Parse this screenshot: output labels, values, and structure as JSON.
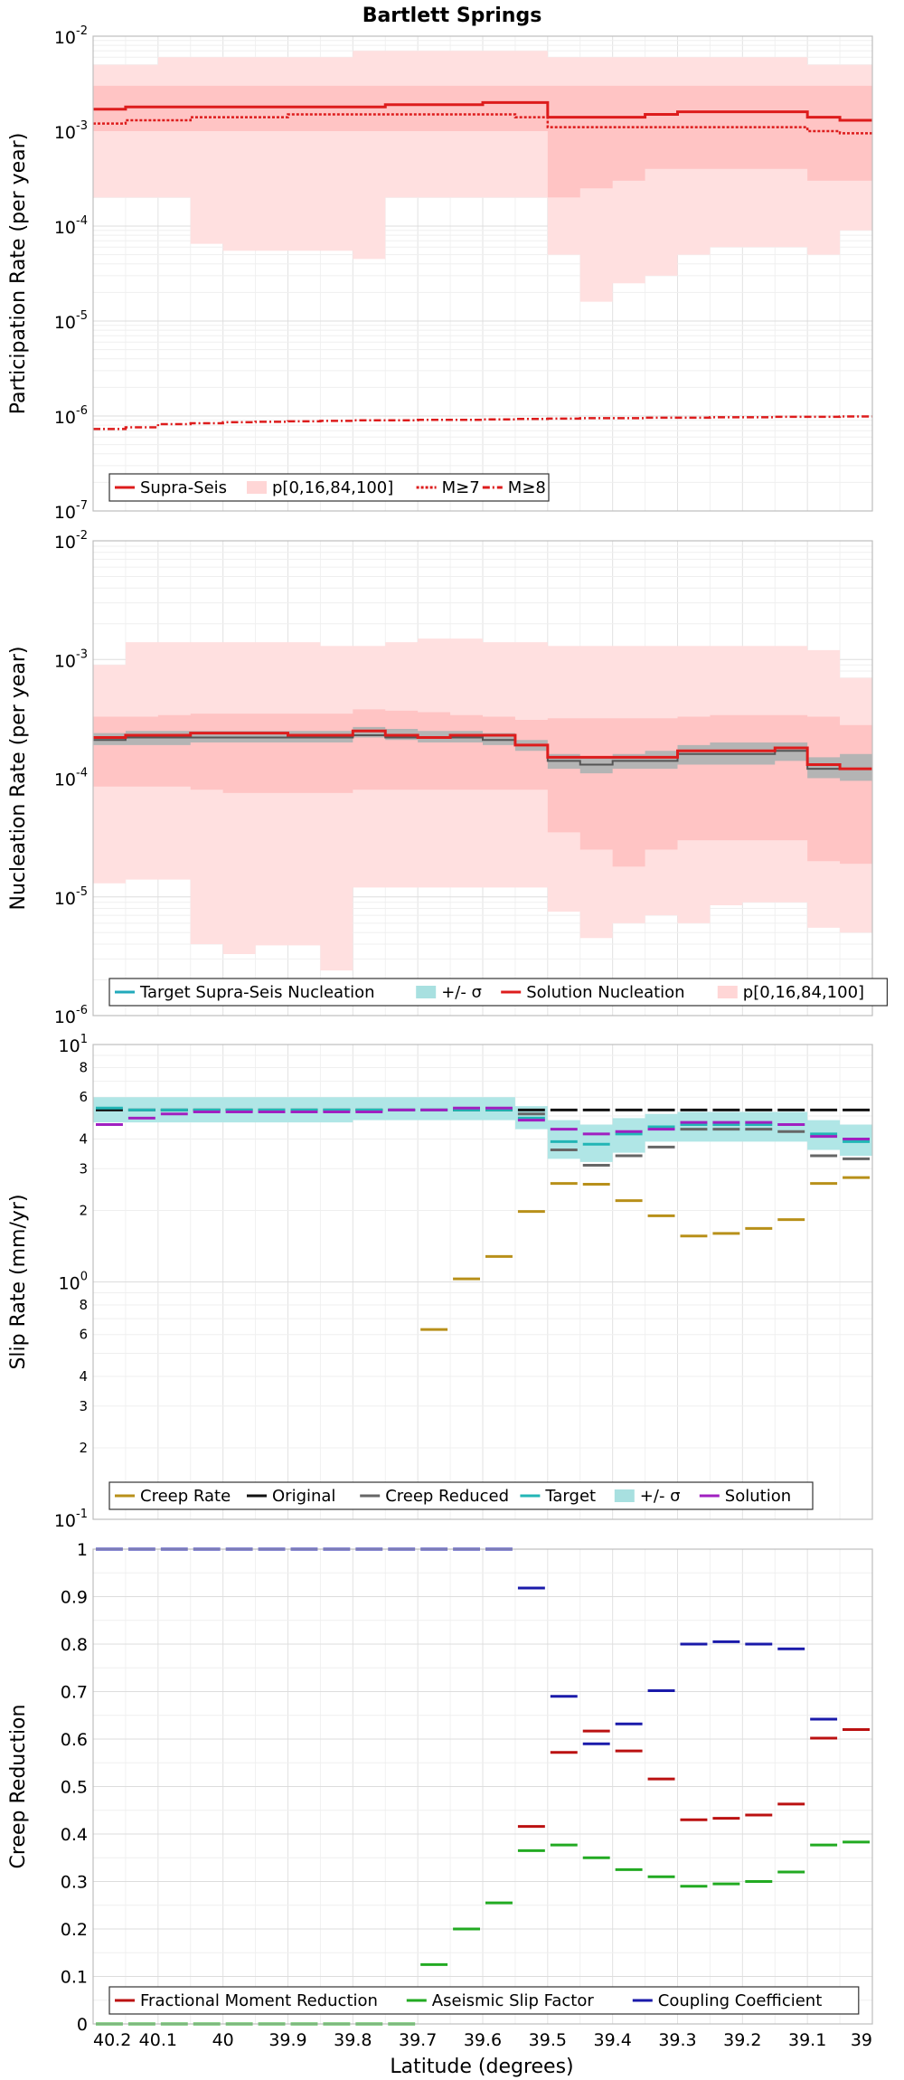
{
  "figure": {
    "title": "Bartlett Springs",
    "xlabel": "Latitude (degrees)",
    "xticks": [
      "40.2",
      "40.1",
      "40",
      "39.9",
      "39.8",
      "39.7",
      "39.6",
      "39.5",
      "39.4",
      "39.3",
      "39.2",
      "39.1",
      "39"
    ]
  },
  "chart_data": [
    {
      "type": "line",
      "name": "participation",
      "ylabel": "Participation Rate (per year)",
      "yscale": "log",
      "ylim": [
        1e-07,
        0.01
      ],
      "x_bins": [
        40.2,
        40.15,
        40.1,
        40.05,
        40.0,
        39.95,
        39.9,
        39.85,
        39.8,
        39.75,
        39.7,
        39.65,
        39.6,
        39.55,
        39.5,
        39.45,
        39.4,
        39.35,
        39.3,
        39.25,
        39.2,
        39.15,
        39.1,
        39.05,
        39.0
      ],
      "bands": [
        {
          "name": "p[0,16,84,100] outer",
          "color": "#ffe0e0",
          "low": [
            0.0002,
            0.0002,
            0.0002,
            6.5e-05,
            5.5e-05,
            5.5e-05,
            5.5e-05,
            5.5e-05,
            4.5e-05,
            0.0002,
            0.0002,
            0.0002,
            0.0002,
            0.0002,
            5e-05,
            1.6e-05,
            2.5e-05,
            3e-05,
            5e-05,
            6e-05,
            6e-05,
            6e-05,
            5e-05,
            9e-05
          ],
          "high": [
            0.005,
            0.005,
            0.006,
            0.006,
            0.006,
            0.006,
            0.006,
            0.006,
            0.007,
            0.007,
            0.007,
            0.007,
            0.007,
            0.007,
            0.006,
            0.006,
            0.006,
            0.006,
            0.006,
            0.006,
            0.006,
            0.006,
            0.005,
            0.005
          ]
        },
        {
          "name": "p[0,16,84,100] inner",
          "color": "#ffc4c4",
          "low": [
            0.001,
            0.001,
            0.001,
            0.001,
            0.001,
            0.001,
            0.001,
            0.001,
            0.001,
            0.001,
            0.001,
            0.001,
            0.001,
            0.001,
            0.0002,
            0.00025,
            0.0003,
            0.0004,
            0.0004,
            0.0004,
            0.0004,
            0.0004,
            0.0003,
            0.0003
          ],
          "high": [
            0.003,
            0.003,
            0.003,
            0.003,
            0.003,
            0.003,
            0.003,
            0.003,
            0.003,
            0.003,
            0.003,
            0.003,
            0.003,
            0.003,
            0.003,
            0.003,
            0.003,
            0.003,
            0.003,
            0.003,
            0.003,
            0.003,
            0.003,
            0.003
          ]
        }
      ],
      "series": [
        {
          "name": "Supra-Seis",
          "color": "#dd1c1c",
          "dash": "",
          "width": 3,
          "values": [
            0.0017,
            0.0018,
            0.0018,
            0.0018,
            0.0018,
            0.0018,
            0.0018,
            0.0018,
            0.0018,
            0.0019,
            0.0019,
            0.0019,
            0.002,
            0.002,
            0.0014,
            0.0014,
            0.0014,
            0.0015,
            0.0016,
            0.0016,
            0.0016,
            0.0016,
            0.0014,
            0.0013
          ]
        },
        {
          "name": "M≥7",
          "color": "#dd1c1c",
          "dash": "3,2",
          "width": 2.5,
          "values": [
            0.0012,
            0.0013,
            0.0013,
            0.0014,
            0.0014,
            0.0014,
            0.0015,
            0.0015,
            0.0015,
            0.0015,
            0.0015,
            0.0015,
            0.0015,
            0.0014,
            0.0011,
            0.0011,
            0.0011,
            0.0011,
            0.0011,
            0.0011,
            0.0011,
            0.0011,
            0.001,
            0.00095
          ]
        },
        {
          "name": "M≥8",
          "color": "#dd1c1c",
          "dash": "8,3,2,3",
          "width": 2.5,
          "values": [
            7.3e-07,
            7.6e-07,
            8.2e-07,
            8.4e-07,
            8.6e-07,
            8.7e-07,
            8.8e-07,
            8.9e-07,
            9e-07,
            9e-07,
            9.1e-07,
            9.1e-07,
            9.2e-07,
            9.3e-07,
            9.4e-07,
            9.5e-07,
            9.5e-07,
            9.6e-07,
            9.6e-07,
            9.7e-07,
            9.7e-07,
            9.8e-07,
            9.8e-07,
            9.9e-07
          ]
        }
      ],
      "legend": [
        {
          "label": "Supra-Seis",
          "kind": "line",
          "color": "#dd1c1c",
          "dash": ""
        },
        {
          "label": "p[0,16,84,100]",
          "kind": "patch",
          "color": "#ffd6d6",
          "dash": ""
        },
        {
          "label": "M≥7",
          "kind": "line",
          "color": "#dd1c1c",
          "dash": "3,2"
        },
        {
          "label": "M≥8",
          "kind": "line",
          "color": "#dd1c1c",
          "dash": "8,3,2,3"
        }
      ]
    },
    {
      "type": "line",
      "name": "nucleation",
      "ylabel": "Nucleation Rate (per year)",
      "yscale": "log",
      "ylim": [
        1e-06,
        0.01
      ],
      "x_bins": [
        40.2,
        40.15,
        40.1,
        40.05,
        40.0,
        39.95,
        39.9,
        39.85,
        39.8,
        39.75,
        39.7,
        39.65,
        39.6,
        39.55,
        39.5,
        39.45,
        39.4,
        39.35,
        39.3,
        39.25,
        39.2,
        39.15,
        39.1,
        39.05,
        39.0
      ],
      "bands": [
        {
          "name": "p[0,16,84,100] outer",
          "color": "#ffe0e0",
          "low": [
            1.3e-05,
            1.4e-05,
            1.4e-05,
            4e-06,
            3.3e-06,
            3.9e-06,
            3.9e-06,
            2.4e-06,
            1.2e-05,
            1.2e-05,
            1.2e-05,
            1.2e-05,
            1.2e-05,
            1.2e-05,
            7.5e-06,
            4.5e-06,
            6e-06,
            7e-06,
            6e-06,
            8.5e-06,
            9e-06,
            9e-06,
            5.5e-06,
            5e-06
          ],
          "high": [
            0.0009,
            0.0014,
            0.0014,
            0.0014,
            0.0014,
            0.0014,
            0.0014,
            0.0013,
            0.0013,
            0.0014,
            0.0015,
            0.0015,
            0.0014,
            0.0014,
            0.0013,
            0.0013,
            0.0013,
            0.0013,
            0.0013,
            0.0013,
            0.0013,
            0.0013,
            0.0012,
            0.0007
          ]
        },
        {
          "name": "p[0,16,84,100] inner",
          "color": "#ffc4c4",
          "low": [
            8.5e-05,
            8.5e-05,
            8.5e-05,
            8e-05,
            7.5e-05,
            7.5e-05,
            7.5e-05,
            7.5e-05,
            8e-05,
            8e-05,
            8e-05,
            8e-05,
            8e-05,
            8e-05,
            3.5e-05,
            2.5e-05,
            1.8e-05,
            2.5e-05,
            3e-05,
            3e-05,
            3e-05,
            3e-05,
            2e-05,
            1.9e-05
          ],
          "high": [
            0.00033,
            0.00033,
            0.00034,
            0.00035,
            0.00035,
            0.00035,
            0.00035,
            0.00035,
            0.00038,
            0.00037,
            0.00036,
            0.00034,
            0.00033,
            0.00031,
            0.00032,
            0.00032,
            0.00032,
            0.00032,
            0.00033,
            0.00034,
            0.00034,
            0.00034,
            0.00033,
            0.00028
          ]
        },
        {
          "name": "+/- σ",
          "color": "#b4b4b4",
          "low": [
            0.00019,
            0.00019,
            0.00019,
            0.0002,
            0.0002,
            0.0002,
            0.0002,
            0.0002,
            0.00022,
            0.00021,
            0.0002,
            0.0002,
            0.00019,
            0.00017,
            0.00012,
            0.00011,
            0.00012,
            0.00012,
            0.00013,
            0.00013,
            0.00013,
            0.00014,
            0.0001,
            9.5e-05
          ],
          "high": [
            0.00024,
            0.00025,
            0.00025,
            0.00025,
            0.00025,
            0.00025,
            0.00025,
            0.00025,
            0.00027,
            0.00026,
            0.00025,
            0.00025,
            0.00024,
            0.00021,
            0.00016,
            0.00015,
            0.00016,
            0.00017,
            0.00019,
            0.0002,
            0.0002,
            0.0002,
            0.00015,
            0.00016
          ]
        }
      ],
      "series": [
        {
          "name": "Target Supra-Seis Nucleation",
          "color": "#555555",
          "dash": "",
          "width": 2,
          "values": [
            0.00021,
            0.00022,
            0.00022,
            0.00022,
            0.00022,
            0.00022,
            0.00022,
            0.00022,
            0.00023,
            0.00022,
            0.00022,
            0.00022,
            0.00021,
            0.00019,
            0.00014,
            0.00013,
            0.00014,
            0.00014,
            0.00016,
            0.00016,
            0.00016,
            0.00017,
            0.00012,
            0.00012
          ]
        },
        {
          "name": "Solution Nucleation",
          "color": "#dd1c1c",
          "dash": "",
          "width": 3,
          "values": [
            0.00022,
            0.00023,
            0.00023,
            0.00024,
            0.00024,
            0.00024,
            0.00023,
            0.00023,
            0.00025,
            0.00023,
            0.00022,
            0.00023,
            0.00023,
            0.00019,
            0.00015,
            0.00015,
            0.00015,
            0.00015,
            0.00017,
            0.00017,
            0.00017,
            0.00018,
            0.00013,
            0.00012
          ]
        }
      ],
      "legend": [
        {
          "label": "Target Supra-Seis Nucleation",
          "kind": "line",
          "color": "#22aabb",
          "dash": ""
        },
        {
          "label": "+/- σ",
          "kind": "patch",
          "color": "#a8e0e0",
          "dash": ""
        },
        {
          "label": "Solution Nucleation",
          "kind": "line",
          "color": "#dd1c1c",
          "dash": ""
        },
        {
          "label": "p[0,16,84,100]",
          "kind": "patch",
          "color": "#ffd6d6",
          "dash": ""
        }
      ]
    },
    {
      "type": "line",
      "name": "slip",
      "ylabel": "Slip Rate (mm/yr)",
      "yscale": "log",
      "ylim": [
        0.1,
        10
      ],
      "x_bins": [
        40.2,
        40.15,
        40.1,
        40.05,
        40.0,
        39.95,
        39.9,
        39.85,
        39.8,
        39.75,
        39.7,
        39.65,
        39.6,
        39.55,
        39.5,
        39.45,
        39.4,
        39.35,
        39.3,
        39.25,
        39.2,
        39.15,
        39.1,
        39.05,
        39.0
      ],
      "bands": [
        {
          "name": "+/- σ",
          "color": "#b0e6e6",
          "low": [
            4.7,
            4.7,
            4.7,
            4.7,
            4.7,
            4.7,
            4.7,
            4.7,
            4.8,
            4.8,
            4.8,
            4.8,
            4.8,
            4.4,
            3.3,
            3.2,
            3.5,
            3.9,
            3.9,
            3.9,
            3.9,
            3.9,
            3.6,
            3.4
          ],
          "high": [
            6.0,
            6.0,
            6.0,
            6.0,
            6.0,
            6.0,
            6.0,
            6.0,
            6.0,
            6.0,
            6.0,
            6.0,
            6.0,
            5.5,
            4.8,
            4.6,
            4.9,
            5.1,
            5.2,
            5.2,
            5.2,
            5.2,
            4.8,
            4.6
          ]
        }
      ],
      "segments": [
        {
          "name": "Original",
          "color": "#111111",
          "width": 3,
          "values": [
            5.3,
            5.3,
            5.3,
            5.3,
            5.3,
            5.3,
            5.3,
            5.3,
            5.3,
            5.3,
            5.3,
            5.3,
            5.3,
            5.3,
            5.3,
            5.3,
            5.3,
            5.3,
            5.3,
            5.3,
            5.3,
            5.3,
            5.3,
            5.3
          ]
        },
        {
          "name": "Target",
          "color": "#22b5b5",
          "width": 3,
          "values": [
            5.4,
            5.3,
            5.3,
            5.3,
            5.3,
            5.3,
            5.3,
            5.3,
            5.3,
            5.3,
            5.3,
            5.3,
            5.3,
            4.9,
            3.9,
            3.8,
            4.2,
            4.5,
            4.6,
            4.6,
            4.6,
            4.6,
            4.2,
            3.9
          ]
        },
        {
          "name": "Creep Reduced",
          "color": "#666666",
          "width": 3,
          "values": [
            null,
            null,
            null,
            null,
            null,
            null,
            null,
            null,
            null,
            null,
            null,
            null,
            null,
            5.1,
            3.6,
            3.1,
            3.4,
            3.7,
            4.4,
            4.4,
            4.4,
            4.3,
            3.4,
            3.3
          ]
        },
        {
          "name": "Solution",
          "color": "#a020c0",
          "width": 3,
          "values": [
            4.6,
            4.9,
            5.1,
            5.2,
            5.2,
            5.2,
            5.2,
            5.2,
            5.2,
            5.3,
            5.3,
            5.4,
            5.4,
            4.8,
            4.4,
            4.2,
            4.3,
            4.4,
            4.7,
            4.7,
            4.7,
            4.6,
            4.1,
            4.0
          ]
        },
        {
          "name": "Creep Rate",
          "color": "#b8901a",
          "width": 3,
          "values": [
            null,
            null,
            null,
            null,
            null,
            null,
            null,
            null,
            null,
            null,
            0.63,
            1.03,
            1.28,
            1.98,
            2.6,
            2.58,
            2.2,
            1.9,
            1.56,
            1.6,
            1.68,
            1.83,
            2.6,
            2.75
          ]
        }
      ],
      "legend": [
        {
          "label": "Creep Rate",
          "kind": "line",
          "color": "#b8901a",
          "dash": ""
        },
        {
          "label": "Original",
          "kind": "line",
          "color": "#111111",
          "dash": ""
        },
        {
          "label": "Creep Reduced",
          "kind": "line",
          "color": "#666666",
          "dash": ""
        },
        {
          "label": "Target",
          "kind": "line",
          "color": "#22b5b5",
          "dash": ""
        },
        {
          "label": "+/- σ",
          "kind": "patch",
          "color": "#a8e0e0",
          "dash": ""
        },
        {
          "label": "Solution",
          "kind": "line",
          "color": "#a020c0",
          "dash": ""
        }
      ]
    },
    {
      "type": "line",
      "name": "creep",
      "ylabel": "Creep Reduction",
      "yscale": "linear",
      "ylim": [
        0,
        1
      ],
      "yticks": [
        0,
        0.1,
        0.2,
        0.3,
        0.4,
        0.5,
        0.6,
        0.7,
        0.8,
        0.9,
        1
      ],
      "x_bins": [
        40.2,
        40.15,
        40.1,
        40.05,
        40.0,
        39.95,
        39.9,
        39.85,
        39.8,
        39.75,
        39.7,
        39.65,
        39.6,
        39.55,
        39.5,
        39.45,
        39.4,
        39.35,
        39.3,
        39.25,
        39.2,
        39.15,
        39.1,
        39.05,
        39.0
      ],
      "segments": [
        {
          "name": "Coupling Coefficient",
          "color": "#1a1aaa",
          "width": 3,
          "values": [
            1,
            1,
            1,
            1,
            1,
            1,
            1,
            1,
            1,
            1,
            1,
            1,
            1,
            0.918,
            0.69,
            0.59,
            0.632,
            0.702,
            0.8,
            0.805,
            0.8,
            0.79,
            0.642,
            0.62
          ]
        },
        {
          "name": "Fractional Moment Reduction",
          "color": "#bb1111",
          "width": 3,
          "values": [
            null,
            null,
            null,
            null,
            null,
            null,
            null,
            null,
            null,
            null,
            null,
            null,
            null,
            0.416,
            0.572,
            0.617,
            0.575,
            0.516,
            0.43,
            0.433,
            0.44,
            0.463,
            0.602,
            0.62
          ]
        },
        {
          "name": "Aseismic Slip Factor",
          "color": "#22aa22",
          "width": 3,
          "values": [
            0,
            0,
            0,
            0,
            0,
            0,
            0,
            0,
            0,
            0,
            0.125,
            0.2,
            0.255,
            0.365,
            0.377,
            0.35,
            0.325,
            0.31,
            0.29,
            0.295,
            0.3,
            0.32,
            0.377,
            0.383
          ]
        }
      ],
      "legend": [
        {
          "label": "Fractional Moment Reduction",
          "kind": "line",
          "color": "#bb1111",
          "dash": ""
        },
        {
          "label": "Aseismic Slip Factor",
          "kind": "line",
          "color": "#22aa22",
          "dash": ""
        },
        {
          "label": "Coupling Coefficient",
          "kind": "line",
          "color": "#1a1aaa",
          "dash": ""
        }
      ]
    }
  ]
}
